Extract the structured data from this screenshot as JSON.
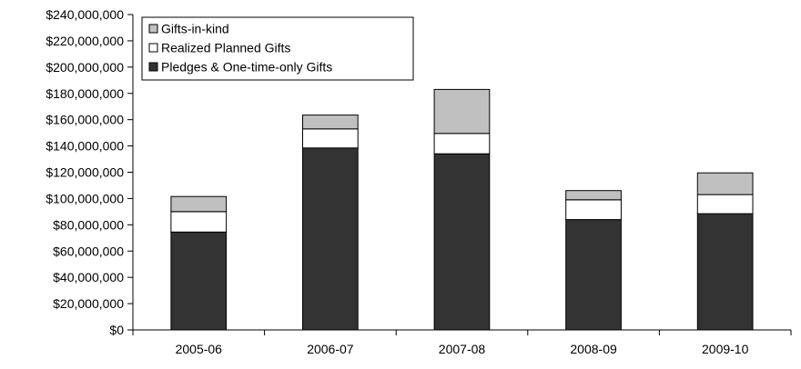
{
  "chart_data": {
    "type": "bar",
    "stacked": true,
    "title": "",
    "xlabel": "",
    "ylabel": "",
    "categories": [
      "2005-06",
      "2006-07",
      "2007-08",
      "2008-09",
      "2009-10"
    ],
    "ylim": [
      0,
      240000000
    ],
    "y_tick_step": 20000000,
    "y_tick_labels": [
      "$0",
      "$20,000,000",
      "$40,000,000",
      "$60,000,000",
      "$80,000,000",
      "$100,000,000",
      "$120,000,000",
      "$140,000,000",
      "$160,000,000",
      "$180,000,000",
      "$200,000,000",
      "$220,000,000",
      "$240,000,000"
    ],
    "grid": false,
    "legend_position": "top-left",
    "series": [
      {
        "name": "Pledges & One-time-only Gifts",
        "color": "#333333",
        "values": [
          74500000,
          138500000,
          134000000,
          84000000,
          88500000
        ]
      },
      {
        "name": "Realized Planned Gifts",
        "color": "#ffffff",
        "values": [
          15500000,
          14500000,
          15500000,
          15000000,
          14500000
        ]
      },
      {
        "name": "Gifts-in-kind",
        "color": "#c0c0c0",
        "values": [
          11500000,
          10500000,
          33500000,
          7000000,
          16500000
        ]
      }
    ],
    "legend_order": [
      "Gifts-in-kind",
      "Realized Planned Gifts",
      "Pledges & One-time-only Gifts"
    ]
  }
}
